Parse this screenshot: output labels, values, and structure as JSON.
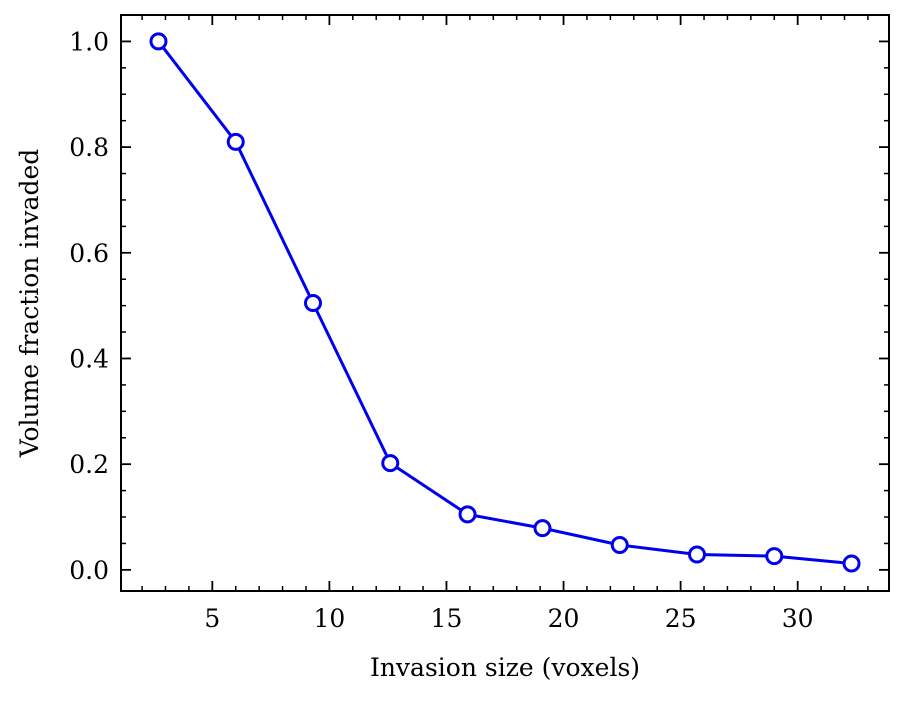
{
  "chart_data": {
    "type": "line",
    "title": "",
    "xlabel": "Invasion size (voxels)",
    "ylabel": "Volume fraction invaded",
    "xlim": [
      1.1,
      33.9
    ],
    "ylim": [
      -0.04,
      1.05
    ],
    "x_ticks": [
      5,
      10,
      15,
      20,
      25,
      30
    ],
    "x_tick_labels": [
      "5",
      "10",
      "15",
      "20",
      "25",
      "30"
    ],
    "x_minor_step": 1,
    "y_ticks": [
      0.0,
      0.2,
      0.4,
      0.6,
      0.8,
      1.0
    ],
    "y_tick_labels": [
      "0.0",
      "0.2",
      "0.4",
      "0.6",
      "0.8",
      "1.0"
    ],
    "y_minor_step": 0.05,
    "grid": false,
    "legend": "none",
    "series": [
      {
        "color": "#0000ee",
        "marker": "open-circle",
        "x": [
          2.7,
          6.0,
          9.3,
          12.6,
          15.9,
          19.1,
          22.4,
          25.7,
          29.0,
          32.3
        ],
        "y": [
          1.0,
          0.81,
          0.505,
          0.202,
          0.105,
          0.079,
          0.047,
          0.029,
          0.026,
          0.012
        ]
      }
    ]
  }
}
